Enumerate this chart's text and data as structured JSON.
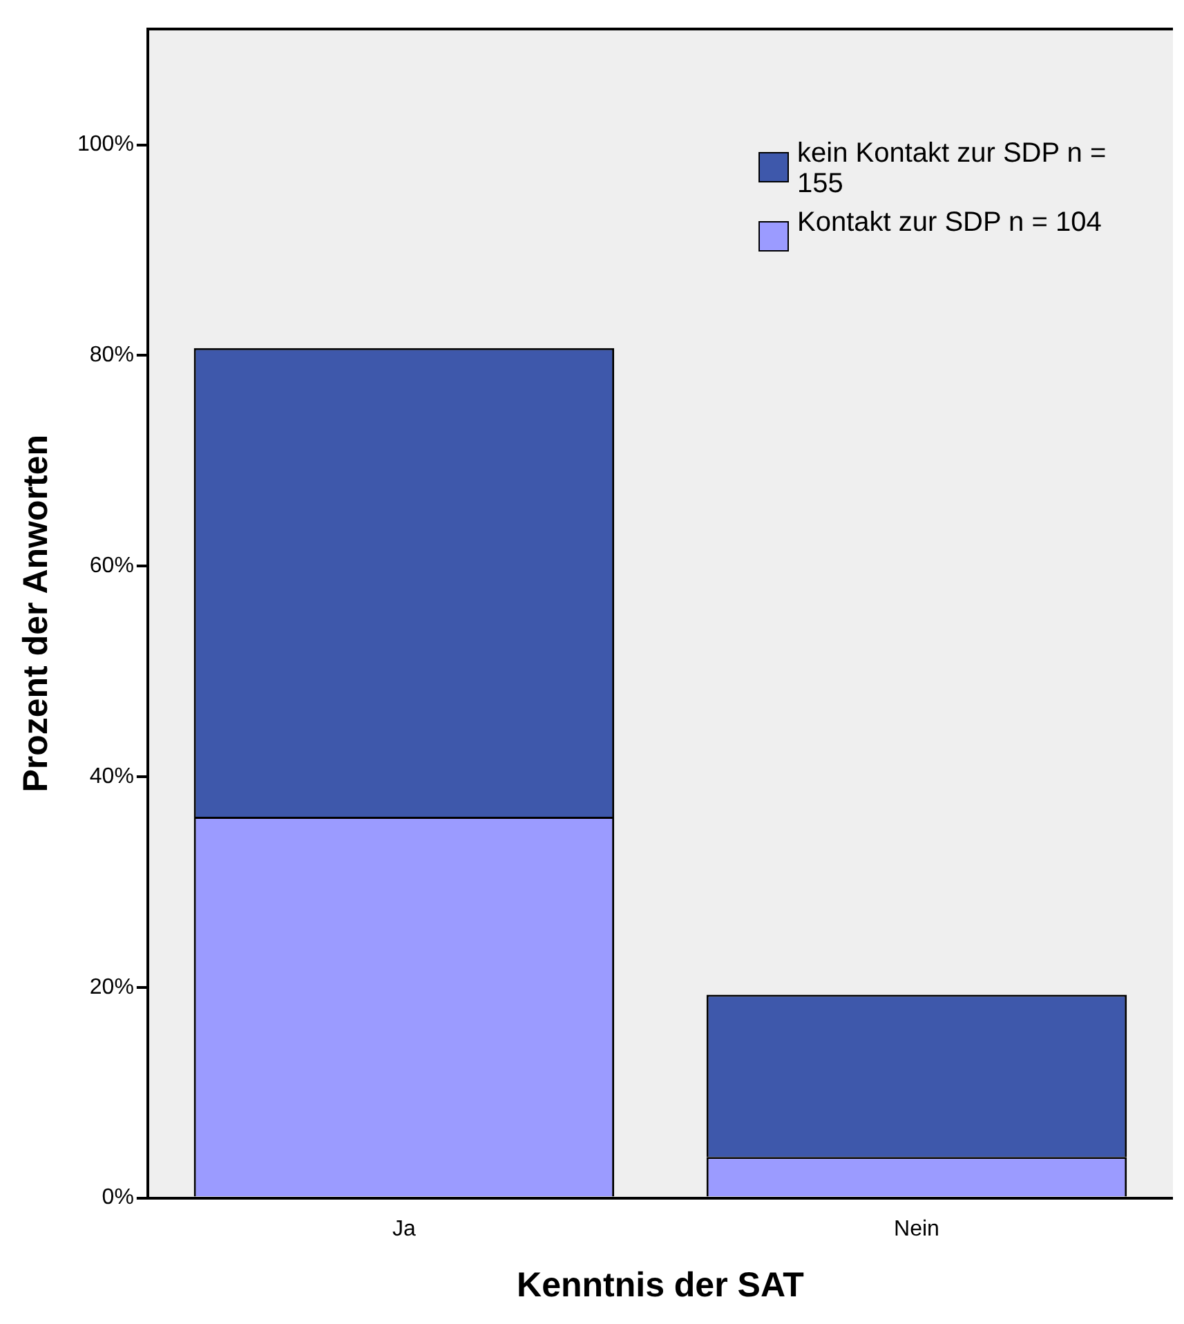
{
  "chart_data": {
    "type": "bar",
    "xlabel": "Kenntnis der SAT",
    "ylabel": "Prozent der Anworten",
    "categories": [
      "Ja",
      "Nein"
    ],
    "stacked": true,
    "series": [
      {
        "name": "Kontakt zur SDP n = 104",
        "color": "#9b9bff",
        "values": [
          36.2,
          3.9
        ]
      },
      {
        "name": "kein Kontakt zur SDP n = 155",
        "color": "#3e58ab",
        "values": [
          44.5,
          15.4
        ]
      }
    ],
    "ylim": [
      0,
      111
    ],
    "yticks": [
      {
        "value": 0,
        "label": "0%"
      },
      {
        "value": 20,
        "label": "20%"
      },
      {
        "value": 40,
        "label": "40%"
      },
      {
        "value": 60,
        "label": "60%"
      },
      {
        "value": 80,
        "label": "80%"
      },
      {
        "value": 100,
        "label": "100%"
      }
    ],
    "grid": false,
    "legend": "top right"
  }
}
